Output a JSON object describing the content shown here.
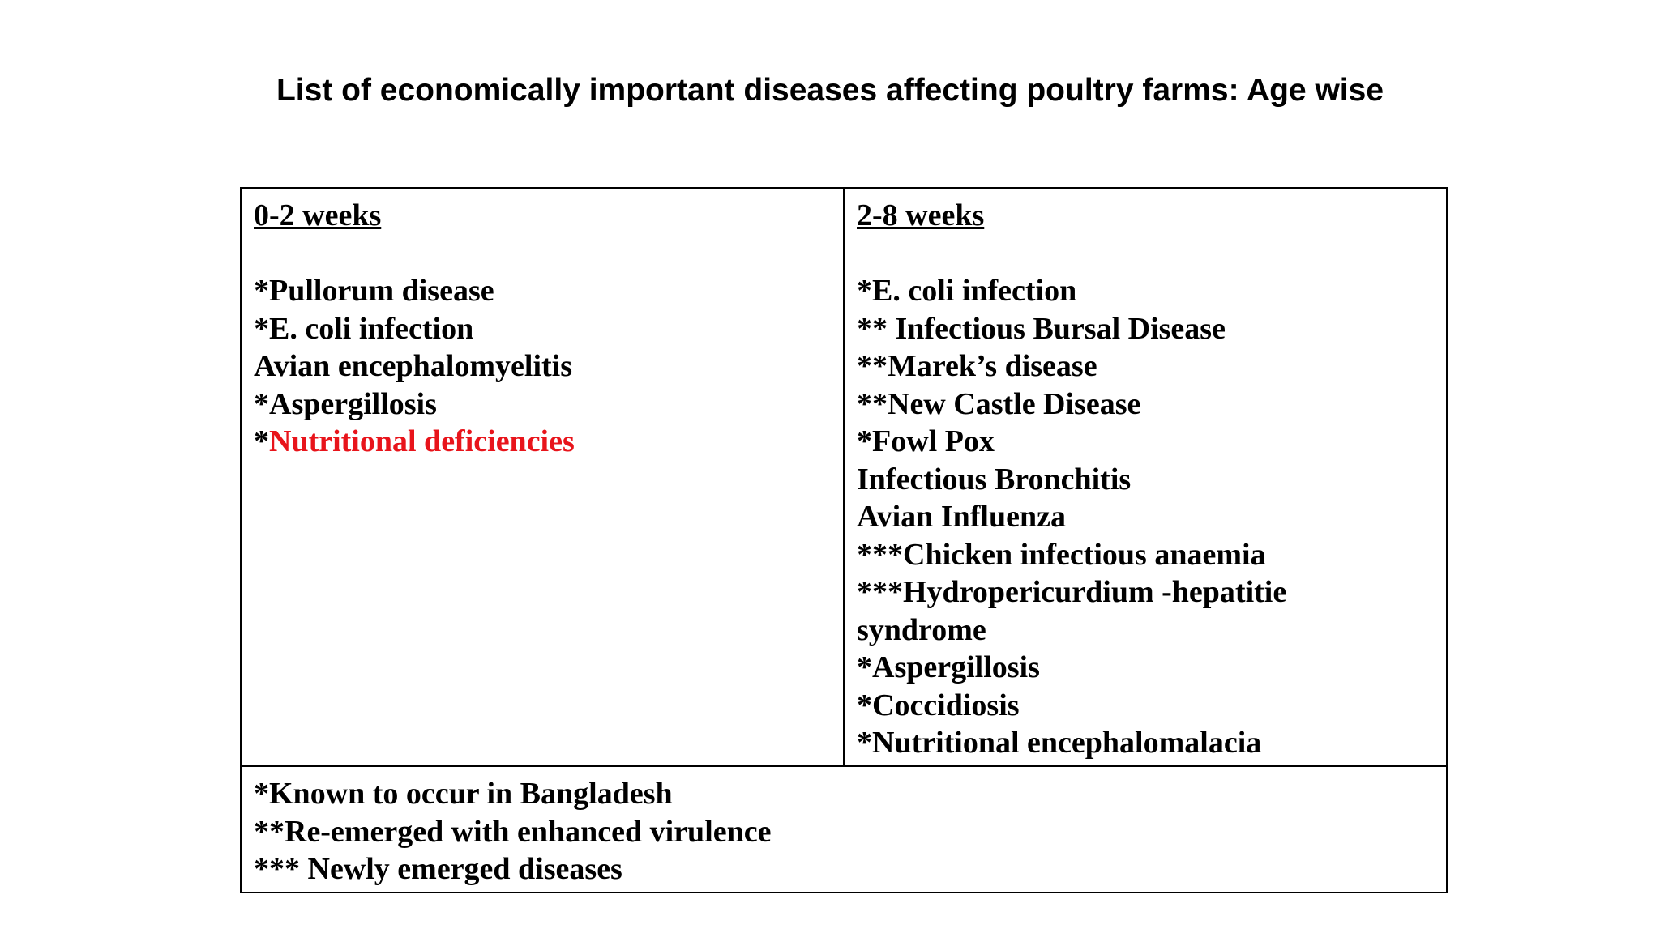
{
  "title": "List of economically important diseases affecting poultry farms: Age wise",
  "accent_color": "#e8141b",
  "columns": [
    {
      "heading": "0-2 weeks",
      "items": [
        {
          "marker": "*",
          "text": "Pullorum disease"
        },
        {
          "marker": "*",
          "text": "E. coli infection"
        },
        {
          "marker": "",
          "text": "Avian encephalomyelitis"
        },
        {
          "marker": "*",
          "text": "Aspergillosis"
        },
        {
          "marker": "*",
          "text": "Nutritional deficiencies"
        }
      ]
    },
    {
      "heading": "2-8 weeks",
      "items": [
        {
          "marker": "*",
          "text": "E. coli infection"
        },
        {
          "marker": "** ",
          "text": "Infectious Bursal Disease"
        },
        {
          "marker": "**",
          "text": "Marek’s disease"
        },
        {
          "marker": "**",
          "text": "New Castle Disease"
        },
        {
          "marker": "*",
          "text": "Fowl Pox"
        },
        {
          "marker": "",
          "text": "Infectious Bronchitis"
        },
        {
          "marker": "",
          "text": "Avian Influenza"
        },
        {
          "marker": "***",
          "text": "Chicken infectious anaemia"
        },
        {
          "marker": "***",
          "text": "Hydropericurdium -hepatitie"
        },
        {
          "marker": "",
          "text": "syndrome"
        },
        {
          "marker": "*",
          "text": "Aspergillosis"
        },
        {
          "marker": "*",
          "text": "Coccidiosis"
        },
        {
          "marker": "*",
          "text": "Nutritional encephalomalacia"
        }
      ]
    }
  ],
  "legend": [
    "*Known to occur in Bangladesh",
    "**Re-emerged with enhanced virulence",
    "*** Newly emerged diseases"
  ]
}
